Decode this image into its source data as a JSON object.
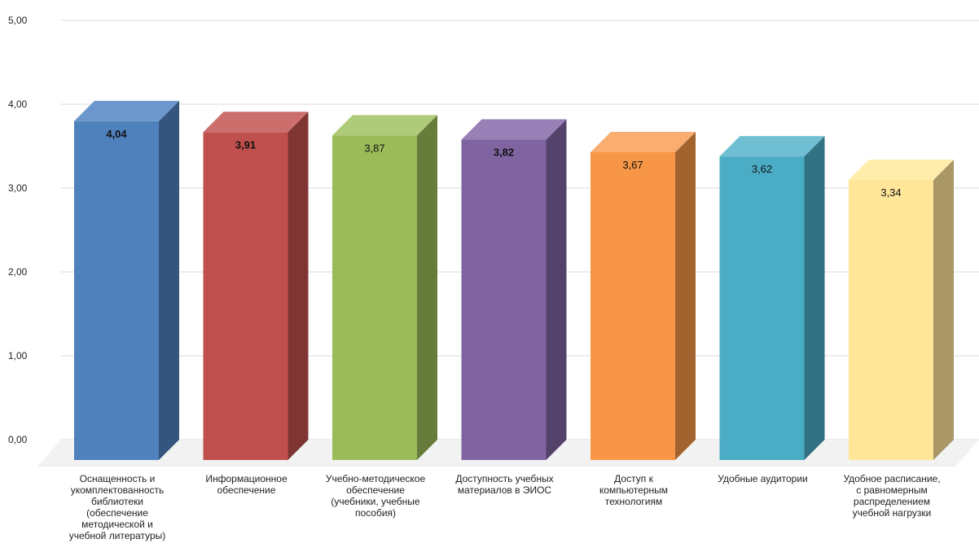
{
  "chart_data": {
    "type": "bar",
    "title": "",
    "xlabel": "",
    "ylabel": "",
    "ylim": [
      0,
      5
    ],
    "y_ticks": [
      "0,00",
      "1,00",
      "2,00",
      "3,00",
      "4,00",
      "5,00"
    ],
    "grid": true,
    "three_d": true,
    "legend": "none",
    "categories": [
      [
        "Оснащенность и",
        "укомплектованность",
        "библиотеки",
        "(обеспечение",
        "методической и",
        "учебной литературы)"
      ],
      [
        "Информационное",
        "обеспечение"
      ],
      [
        "Учебно-методическое",
        "обеспечение",
        "(учебники, учебные",
        "пособия)"
      ],
      [
        "Доступность учебных",
        "материалов в ЭИОС"
      ],
      [
        "Доступ к",
        "компьютерным",
        "технологиям"
      ],
      [
        "Удобные аудитории"
      ],
      [
        "Удобное расписание,",
        "с равномерным",
        "распределением",
        "учебной нагрузки"
      ]
    ],
    "values": [
      4.04,
      3.91,
      3.87,
      3.82,
      3.67,
      3.62,
      3.34
    ],
    "data_labels": [
      "4,04",
      "3,91",
      "3,87",
      "3,82",
      "3,67",
      "3,62",
      "3,34"
    ],
    "colors": [
      "#4F81BD",
      "#C0504D",
      "#9BBB59",
      "#8064A2",
      "#F79646",
      "#4BACC6",
      "#FFE699"
    ],
    "side_colors": [
      "#34557D",
      "#7F3533",
      "#677C3B",
      "#55426B",
      "#A3632E",
      "#317283",
      "#A99768"
    ],
    "top_colors": [
      "#6B97CC",
      "#CC6E6B",
      "#AECB79",
      "#987FB6",
      "#F9AD6E",
      "#70BED2",
      "#FFEDAC"
    ],
    "label_colors": [
      "#ffffff",
      "#ffffff",
      "#111111",
      "#ffffff",
      "#111111",
      "#111111",
      "#111111"
    ]
  }
}
